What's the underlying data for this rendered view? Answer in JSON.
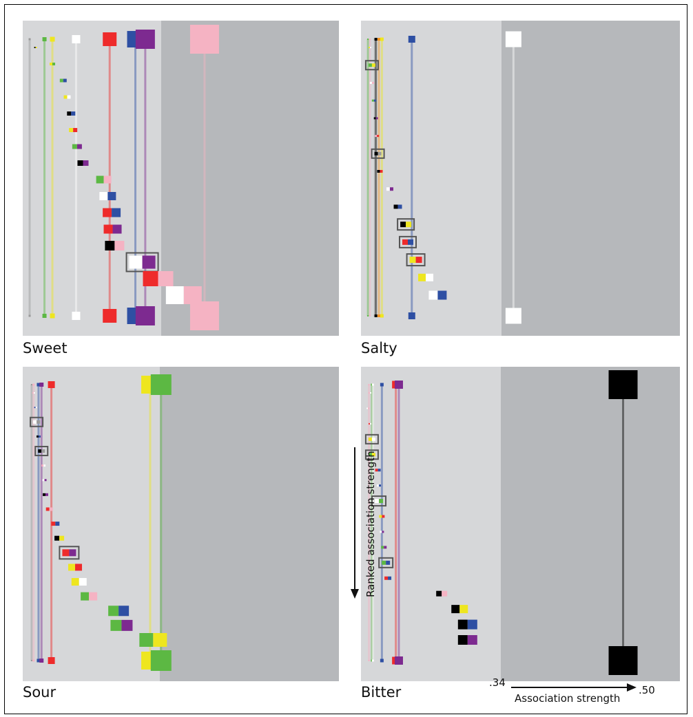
{
  "chart_data": {
    "type": "association-rank-plot",
    "title": "",
    "x_axis": {
      "label": "Association strength",
      "min_label": ".34",
      "max_label": ".50",
      "range": [
        0.34,
        0.5
      ]
    },
    "y_axis": {
      "label": "Ranked association strength"
    },
    "background": {
      "light": "#d6d7d9",
      "dark": "#b6b8bb"
    },
    "colors": {
      "red": "#ee2b2b",
      "orange": "#f7941d",
      "yellow": "#eee61f",
      "green": "#5cb843",
      "blue": "#2e4fa3",
      "purple": "#7d2a90",
      "pink": "#f5b3c3",
      "white": "#ffffff",
      "black": "#000000",
      "gray": "#9a9a9a"
    },
    "panels": [
      {
        "name": "Sweet",
        "singles": [
          {
            "color": "gray",
            "strength": 0.3435,
            "size": 3
          },
          {
            "color": "green",
            "strength": 0.351,
            "size": 6
          },
          {
            "color": "yellow",
            "strength": 0.355,
            "size": 7
          },
          {
            "color": "white",
            "strength": 0.367,
            "size": 12
          },
          {
            "color": "red",
            "strength": 0.384,
            "size": 20
          },
          {
            "color": "blue",
            "strength": 0.397,
            "size": 24
          },
          {
            "color": "purple",
            "strength": 0.402,
            "size": 28
          },
          {
            "color": "pink",
            "strength": 0.432,
            "size": 42
          }
        ],
        "pairs": [
          {
            "colors": [
              "black",
              "yellow"
            ],
            "strength": 0.3465,
            "size": 2,
            "boxed": false
          },
          {
            "colors": [
              "yellow",
              "green"
            ],
            "strength": 0.355,
            "size": 4,
            "boxed": false
          },
          {
            "colors": [
              "green",
              "blue"
            ],
            "strength": 0.3605,
            "size": 5,
            "boxed": false
          },
          {
            "colors": [
              "yellow",
              "white"
            ],
            "strength": 0.3625,
            "size": 5,
            "boxed": false
          },
          {
            "colors": [
              "black",
              "blue"
            ],
            "strength": 0.3645,
            "size": 6,
            "boxed": false
          },
          {
            "colors": [
              "yellow",
              "red"
            ],
            "strength": 0.3655,
            "size": 6,
            "boxed": false
          },
          {
            "colors": [
              "green",
              "purple"
            ],
            "strength": 0.3675,
            "size": 7,
            "boxed": false
          },
          {
            "colors": [
              "black",
              "purple"
            ],
            "strength": 0.3705,
            "size": 8,
            "boxed": false
          },
          {
            "colors": [
              "green",
              "pink"
            ],
            "strength": 0.381,
            "size": 11,
            "boxed": false
          },
          {
            "colors": [
              "white",
              "blue"
            ],
            "strength": 0.383,
            "size": 12,
            "boxed": false
          },
          {
            "colors": [
              "red",
              "blue"
            ],
            "strength": 0.385,
            "size": 13,
            "boxed": false
          },
          {
            "colors": [
              "red",
              "purple"
            ],
            "strength": 0.3855,
            "size": 13,
            "boxed": false
          },
          {
            "colors": [
              "black",
              "pink"
            ],
            "strength": 0.3865,
            "size": 14,
            "boxed": false
          },
          {
            "colors": [
              "white",
              "purple"
            ],
            "strength": 0.4005,
            "size": 19,
            "boxed": true
          },
          {
            "colors": [
              "red",
              "pink"
            ],
            "strength": 0.4085,
            "size": 22,
            "boxed": false
          },
          {
            "colors": [
              "white",
              "pink"
            ],
            "strength": 0.4215,
            "size": 26,
            "boxed": false
          }
        ]
      },
      {
        "name": "Salty",
        "singles": [
          {
            "color": "green",
            "strength": 0.3435,
            "size": 2
          },
          {
            "color": "pink",
            "strength": 0.3445,
            "size": 2
          },
          {
            "color": "gray",
            "strength": 0.347,
            "size": 3
          },
          {
            "color": "black",
            "strength": 0.3475,
            "size": 4
          },
          {
            "color": "orange",
            "strength": 0.349,
            "size": 4
          },
          {
            "color": "yellow",
            "strength": 0.3505,
            "size": 5
          },
          {
            "color": "blue",
            "strength": 0.3655,
            "size": 10
          },
          {
            "color": "white",
            "strength": 0.4165,
            "size": 23
          }
        ],
        "pairs": [
          {
            "colors": [
              "yellow",
              "white"
            ],
            "strength": 0.3445,
            "size": 2,
            "boxed": false
          },
          {
            "colors": [
              "green",
              "yellow"
            ],
            "strength": 0.3455,
            "size": 5,
            "boxed": true
          },
          {
            "colors": [
              "white",
              "pink"
            ],
            "strength": 0.3455,
            "size": 3,
            "boxed": false
          },
          {
            "colors": [
              "green",
              "blue"
            ],
            "strength": 0.3465,
            "size": 3,
            "boxed": false
          },
          {
            "colors": [
              "black",
              "purple"
            ],
            "strength": 0.3475,
            "size": 3,
            "boxed": false
          },
          {
            "colors": [
              "pink",
              "red"
            ],
            "strength": 0.348,
            "size": 3,
            "boxed": false
          },
          {
            "colors": [
              "black",
              "gray"
            ],
            "strength": 0.3485,
            "size": 5,
            "boxed": true
          },
          {
            "colors": [
              "black",
              "red"
            ],
            "strength": 0.3495,
            "size": 4,
            "boxed": false
          },
          {
            "colors": [
              "white",
              "purple"
            ],
            "strength": 0.3545,
            "size": 5,
            "boxed": false
          },
          {
            "colors": [
              "black",
              "blue"
            ],
            "strength": 0.3585,
            "size": 6,
            "boxed": false
          },
          {
            "colors": [
              "black",
              "yellow"
            ],
            "strength": 0.3625,
            "size": 8,
            "boxed": true
          },
          {
            "colors": [
              "red",
              "blue"
            ],
            "strength": 0.3635,
            "size": 8,
            "boxed": true
          },
          {
            "colors": [
              "yellow",
              "red"
            ],
            "strength": 0.3675,
            "size": 9,
            "boxed": true
          },
          {
            "colors": [
              "yellow",
              "white"
            ],
            "strength": 0.3725,
            "size": 11,
            "boxed": false
          },
          {
            "colors": [
              "white",
              "blue"
            ],
            "strength": 0.3785,
            "size": 13,
            "boxed": false
          }
        ]
      },
      {
        "name": "Sour",
        "singles": [
          {
            "color": "gray",
            "strength": 0.3445,
            "size": 2
          },
          {
            "color": "pink",
            "strength": 0.3455,
            "size": 3
          },
          {
            "color": "blue",
            "strength": 0.348,
            "size": 5
          },
          {
            "color": "purple",
            "strength": 0.3495,
            "size": 6
          },
          {
            "color": "red",
            "strength": 0.3545,
            "size": 10
          },
          {
            "color": "yellow",
            "strength": 0.4045,
            "size": 26
          },
          {
            "color": "green",
            "strength": 0.41,
            "size": 30
          }
        ],
        "pairs": [
          {
            "colors": [
              "pink",
              "white"
            ],
            "strength": 0.3455,
            "size": 2,
            "boxed": false
          },
          {
            "colors": [
              "blue",
              "white"
            ],
            "strength": 0.3465,
            "size": 2,
            "boxed": false
          },
          {
            "colors": [
              "white",
              "gray"
            ],
            "strength": 0.347,
            "size": 5,
            "boxed": true
          },
          {
            "colors": [
              "black",
              "blue"
            ],
            "strength": 0.348,
            "size": 3,
            "boxed": false
          },
          {
            "colors": [
              "black",
              "gray"
            ],
            "strength": 0.3495,
            "size": 5,
            "boxed": true
          },
          {
            "colors": [
              "pink",
              "white"
            ],
            "strength": 0.3505,
            "size": 3,
            "boxed": false
          },
          {
            "colors": [
              "white",
              "purple"
            ],
            "strength": 0.351,
            "size": 3,
            "boxed": false
          },
          {
            "colors": [
              "black",
              "purple"
            ],
            "strength": 0.3515,
            "size": 4,
            "boxed": false
          },
          {
            "colors": [
              "red",
              "pink"
            ],
            "strength": 0.3535,
            "size": 5,
            "boxed": false
          },
          {
            "colors": [
              "red",
              "blue"
            ],
            "strength": 0.3565,
            "size": 6,
            "boxed": false
          },
          {
            "colors": [
              "black",
              "yellow"
            ],
            "strength": 0.3585,
            "size": 7,
            "boxed": false
          },
          {
            "colors": [
              "red",
              "purple"
            ],
            "strength": 0.3635,
            "size": 10,
            "boxed": true
          },
          {
            "colors": [
              "yellow",
              "red"
            ],
            "strength": 0.3665,
            "size": 10,
            "boxed": false
          },
          {
            "colors": [
              "yellow",
              "white"
            ],
            "strength": 0.3685,
            "size": 11,
            "boxed": false
          },
          {
            "colors": [
              "green",
              "pink"
            ],
            "strength": 0.3735,
            "size": 12,
            "boxed": false
          },
          {
            "colors": [
              "green",
              "blue"
            ],
            "strength": 0.3885,
            "size": 15,
            "boxed": false
          },
          {
            "colors": [
              "green",
              "purple"
            ],
            "strength": 0.39,
            "size": 16,
            "boxed": false
          },
          {
            "colors": [
              "green",
              "yellow"
            ],
            "strength": 0.406,
            "size": 20,
            "boxed": false
          }
        ]
      },
      {
        "name": "Bitter",
        "singles": [
          {
            "color": "pink",
            "strength": 0.344,
            "size": 2
          },
          {
            "color": "green",
            "strength": 0.3455,
            "size": 3
          },
          {
            "color": "white",
            "strength": 0.346,
            "size": 3
          },
          {
            "color": "blue",
            "strength": 0.3505,
            "size": 5
          },
          {
            "color": "red",
            "strength": 0.3575,
            "size": 11
          },
          {
            "color": "purple",
            "strength": 0.359,
            "size": 12
          },
          {
            "color": "black",
            "strength": 0.4715,
            "size": 42
          }
        ],
        "pairs": [
          {
            "colors": [
              "pink",
              "white"
            ],
            "strength": 0.3445,
            "size": 2,
            "boxed": false
          },
          {
            "colors": [
              "white",
              "pink"
            ],
            "strength": 0.3435,
            "size": 2,
            "boxed": false
          },
          {
            "colors": [
              "red",
              "white"
            ],
            "strength": 0.3445,
            "size": 2,
            "boxed": false
          },
          {
            "colors": [
              "yellow",
              "white"
            ],
            "strength": 0.3455,
            "size": 5,
            "boxed": true
          },
          {
            "colors": [
              "green",
              "yellow"
            ],
            "strength": 0.3455,
            "size": 5,
            "boxed": true
          },
          {
            "colors": [
              "red",
              "blue"
            ],
            "strength": 0.3485,
            "size": 4,
            "boxed": false
          },
          {
            "colors": [
              "white",
              "blue"
            ],
            "strength": 0.349,
            "size": 3,
            "boxed": false
          },
          {
            "colors": [
              "white",
              "green"
            ],
            "strength": 0.349,
            "size": 6,
            "boxed": true
          },
          {
            "colors": [
              "yellow",
              "red"
            ],
            "strength": 0.3505,
            "size": 4,
            "boxed": false
          },
          {
            "colors": [
              "white",
              "purple"
            ],
            "strength": 0.3505,
            "size": 3,
            "boxed": false
          },
          {
            "colors": [
              "green",
              "purple"
            ],
            "strength": 0.3515,
            "size": 4,
            "boxed": false
          },
          {
            "colors": [
              "green",
              "blue"
            ],
            "strength": 0.3525,
            "size": 6,
            "boxed": true
          },
          {
            "colors": [
              "red",
              "blue"
            ],
            "strength": 0.3535,
            "size": 5,
            "boxed": false
          },
          {
            "colors": [
              "black",
              "pink"
            ],
            "strength": 0.3805,
            "size": 8,
            "boxed": false
          },
          {
            "colors": [
              "black",
              "yellow"
            ],
            "strength": 0.3895,
            "size": 12,
            "boxed": false
          },
          {
            "colors": [
              "black",
              "blue"
            ],
            "strength": 0.3935,
            "size": 14,
            "boxed": false
          },
          {
            "colors": [
              "black",
              "purple"
            ],
            "strength": 0.3935,
            "size": 14,
            "boxed": false
          }
        ]
      }
    ]
  }
}
